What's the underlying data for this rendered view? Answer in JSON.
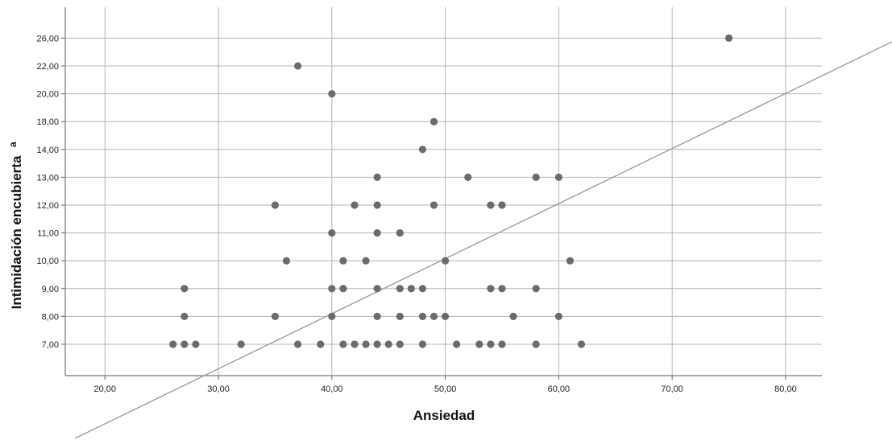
{
  "chart_data": {
    "type": "scatter",
    "xlabel": "Ansiedad",
    "ylabel": "Intimidación encubierta",
    "ylabel_superscript": "a",
    "x_ticks": [
      {
        "value": 20,
        "label": "20,00"
      },
      {
        "value": 30,
        "label": "30,00"
      },
      {
        "value": 40,
        "label": "40,00"
      },
      {
        "value": 50,
        "label": "50,00"
      },
      {
        "value": 60,
        "label": "60,00"
      },
      {
        "value": 70,
        "label": "70,00"
      },
      {
        "value": 80,
        "label": "80,00"
      }
    ],
    "y_categories": [
      {
        "value": 7,
        "label": "7,00"
      },
      {
        "value": 8,
        "label": "8,00"
      },
      {
        "value": 9,
        "label": "9,00"
      },
      {
        "value": 10,
        "label": "10,00"
      },
      {
        "value": 11,
        "label": "11,00"
      },
      {
        "value": 12,
        "label": "12,00"
      },
      {
        "value": 13,
        "label": "13,00"
      },
      {
        "value": 14,
        "label": "14,00"
      },
      {
        "value": 18,
        "label": "18,00"
      },
      {
        "value": 20,
        "label": "20,00"
      },
      {
        "value": 22,
        "label": "22,00"
      },
      {
        "value": 26,
        "label": "26,00"
      }
    ],
    "xlim": [
      16.5,
      83.2
    ],
    "grid": true,
    "reference_line": "y = x",
    "colors": {
      "point": "#6b6b6b",
      "grid": "#b4b4b4",
      "axis": "#777777",
      "reference_line": "#9a9a9a"
    },
    "points": [
      {
        "x": 26,
        "y": 7
      },
      {
        "x": 27,
        "y": 7
      },
      {
        "x": 28,
        "y": 7
      },
      {
        "x": 32,
        "y": 7
      },
      {
        "x": 37,
        "y": 7
      },
      {
        "x": 39,
        "y": 7
      },
      {
        "x": 41,
        "y": 7
      },
      {
        "x": 42,
        "y": 7
      },
      {
        "x": 43,
        "y": 7
      },
      {
        "x": 44,
        "y": 7
      },
      {
        "x": 45,
        "y": 7
      },
      {
        "x": 46,
        "y": 7
      },
      {
        "x": 48,
        "y": 7
      },
      {
        "x": 51,
        "y": 7
      },
      {
        "x": 53,
        "y": 7
      },
      {
        "x": 54,
        "y": 7
      },
      {
        "x": 55,
        "y": 7
      },
      {
        "x": 58,
        "y": 7
      },
      {
        "x": 62,
        "y": 7
      },
      {
        "x": 27,
        "y": 8
      },
      {
        "x": 35,
        "y": 8
      },
      {
        "x": 40,
        "y": 8
      },
      {
        "x": 44,
        "y": 8
      },
      {
        "x": 46,
        "y": 8
      },
      {
        "x": 48,
        "y": 8
      },
      {
        "x": 49,
        "y": 8
      },
      {
        "x": 50,
        "y": 8
      },
      {
        "x": 56,
        "y": 8
      },
      {
        "x": 60,
        "y": 8
      },
      {
        "x": 27,
        "y": 9
      },
      {
        "x": 40,
        "y": 9
      },
      {
        "x": 41,
        "y": 9
      },
      {
        "x": 44,
        "y": 9
      },
      {
        "x": 46,
        "y": 9
      },
      {
        "x": 47,
        "y": 9
      },
      {
        "x": 48,
        "y": 9
      },
      {
        "x": 54,
        "y": 9
      },
      {
        "x": 55,
        "y": 9
      },
      {
        "x": 58,
        "y": 9
      },
      {
        "x": 36,
        "y": 10
      },
      {
        "x": 41,
        "y": 10
      },
      {
        "x": 43,
        "y": 10
      },
      {
        "x": 50,
        "y": 10
      },
      {
        "x": 61,
        "y": 10
      },
      {
        "x": 40,
        "y": 11
      },
      {
        "x": 44,
        "y": 11
      },
      {
        "x": 46,
        "y": 11
      },
      {
        "x": 35,
        "y": 12
      },
      {
        "x": 42,
        "y": 12
      },
      {
        "x": 44,
        "y": 12
      },
      {
        "x": 49,
        "y": 12
      },
      {
        "x": 54,
        "y": 12
      },
      {
        "x": 55,
        "y": 12
      },
      {
        "x": 44,
        "y": 13
      },
      {
        "x": 52,
        "y": 13
      },
      {
        "x": 58,
        "y": 13
      },
      {
        "x": 60,
        "y": 13
      },
      {
        "x": 48,
        "y": 14
      },
      {
        "x": 49,
        "y": 18
      },
      {
        "x": 40,
        "y": 20
      },
      {
        "x": 37,
        "y": 22
      },
      {
        "x": 75,
        "y": 26
      }
    ]
  }
}
